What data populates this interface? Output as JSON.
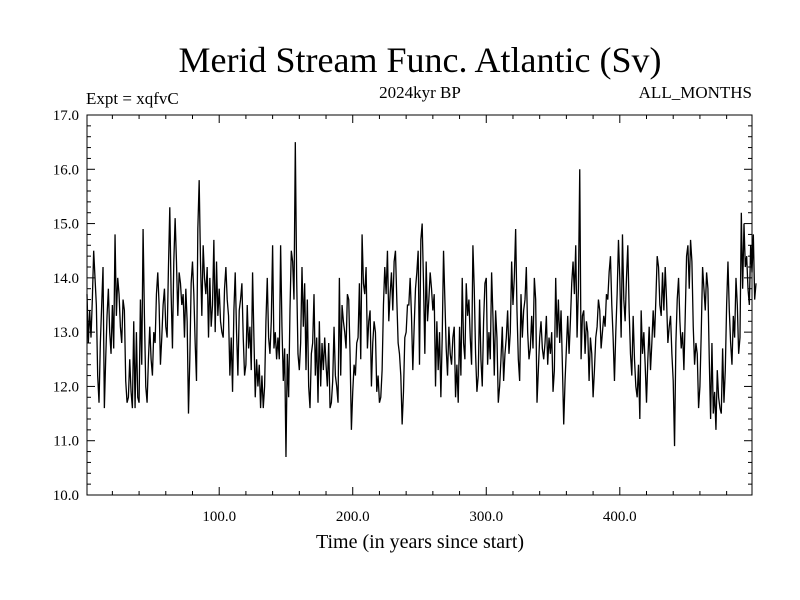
{
  "chart_data": {
    "type": "line",
    "title": "Merid Stream Func. Atlantic (Sv)",
    "subtitle": "2024kyr BP",
    "left_note": "Expt = xqfvC",
    "right_note": "ALL_MONTHS",
    "xlabel": "Time (in years since start)",
    "ylabel": "",
    "xlim": [
      1,
      499
    ],
    "ylim": [
      10.0,
      17.0
    ],
    "xticks": [
      100,
      200,
      300,
      400
    ],
    "xtick_labels": [
      "100.0",
      "200.0",
      "300.0",
      "400.0"
    ],
    "yticks": [
      10,
      11,
      12,
      13,
      14,
      15,
      16,
      17
    ],
    "ytick_labels": [
      "10.0",
      "11.0",
      "12.0",
      "13.0",
      "14.0",
      "15.0",
      "16.0",
      "17.0"
    ],
    "grid": false,
    "series": [
      {
        "name": "Merid Stream Func. Atlantic",
        "color": "#000000",
        "x_start": 1,
        "x_step": 1,
        "values": [
          13.7,
          12.8,
          13.4,
          12.9,
          13.6,
          14.5,
          14.0,
          13.5,
          12.2,
          11.7,
          12.8,
          13.5,
          14.2,
          11.6,
          12.5,
          13.3,
          13.8,
          13.0,
          12.6,
          13.5,
          12.7,
          14.8,
          13.3,
          14.0,
          13.7,
          13.1,
          12.8,
          13.6,
          13.4,
          12.1,
          11.7,
          11.8,
          12.5,
          11.9,
          11.6,
          13.2,
          11.6,
          13.0,
          11.8,
          11.7,
          13.6,
          12.4,
          14.9,
          13.3,
          12.0,
          11.7,
          12.5,
          13.1,
          12.5,
          12.2,
          13.0,
          12.8,
          13.7,
          14.1,
          13.5,
          12.4,
          12.9,
          13.5,
          13.8,
          13.1,
          12.9,
          14.2,
          15.3,
          13.7,
          12.7,
          14.3,
          15.1,
          14.3,
          13.3,
          14.1,
          13.9,
          13.5,
          13.7,
          12.9,
          13.8,
          13.2,
          11.5,
          12.5,
          13.9,
          14.3,
          13.7,
          12.8,
          12.1,
          14.9,
          15.8,
          14.3,
          13.3,
          14.6,
          14.0,
          13.7,
          14.2,
          12.9,
          14.0,
          13.1,
          13.5,
          14.7,
          13.0,
          14.3,
          13.3,
          13.8,
          13.2,
          13.0,
          12.9,
          13.8,
          14.2,
          13.6,
          13.3,
          12.2,
          12.9,
          11.9,
          13.4,
          14.1,
          13.0,
          12.2,
          13.4,
          13.6,
          13.9,
          12.9,
          12.2,
          12.4,
          13.5,
          12.7,
          13.1,
          12.3,
          14.1,
          12.9,
          11.8,
          12.5,
          12.0,
          12.4,
          11.6,
          12.2,
          11.6,
          12.0,
          13.2,
          14.0,
          12.9,
          12.6,
          13.2,
          14.6,
          12.7,
          13.0,
          12.5,
          12.9,
          12.5,
          14.6,
          13.1,
          12.1,
          12.7,
          10.7,
          12.6,
          11.8,
          13.4,
          14.5,
          14.3,
          13.6,
          16.5,
          14.0,
          12.6,
          12.3,
          12.8,
          14.2,
          13.1,
          13.9,
          12.3,
          13.6,
          12.0,
          11.6,
          12.6,
          12.8,
          13.7,
          12.2,
          12.9,
          11.7,
          13.2,
          12.0,
          12.8,
          12.3,
          12.9,
          12.4,
          12.0,
          12.8,
          11.6,
          11.7,
          12.1,
          13.1,
          12.2,
          12.0,
          11.7,
          14.0,
          12.2,
          13.5,
          13.2,
          13.0,
          12.7,
          13.7,
          13.6,
          12.6,
          11.2,
          11.9,
          12.4,
          12.2,
          12.8,
          12.9,
          13.9,
          12.5,
          14.8,
          13.9,
          13.7,
          14.2,
          12.7,
          13.2,
          13.4,
          12.0,
          12.8,
          13.2,
          13.0,
          11.9,
          12.2,
          11.7,
          11.8,
          12.3,
          13.5,
          14.2,
          13.7,
          14.5,
          13.2,
          13.7,
          14.1,
          13.4,
          14.3,
          14.5,
          13.6,
          12.8,
          12.6,
          12.2,
          11.3,
          11.9,
          12.9,
          13.0,
          13.5,
          13.5,
          14.0,
          13.3,
          12.3,
          13.1,
          13.8,
          14.1,
          14.5,
          12.4,
          14.7,
          15.0,
          13.9,
          12.6,
          14.3,
          13.2,
          13.6,
          14.1,
          13.8,
          13.4,
          13.7,
          12.0,
          13.2,
          12.3,
          13.0,
          11.8,
          12.9,
          14.5,
          13.6,
          12.7,
          12.2,
          13.1,
          12.6,
          12.4,
          12.9,
          13.1,
          11.8,
          12.4,
          11.7,
          13.1,
          12.2,
          14.0,
          12.8,
          12.5,
          13.9,
          13.3,
          13.6,
          12.9,
          12.4,
          14.6,
          13.8,
          12.6,
          11.9,
          12.2,
          13.6,
          12.5,
          12.0,
          13.2,
          13.9,
          14.0,
          12.4,
          13.0,
          12.5,
          14.1,
          13.3,
          12.2,
          13.4,
          12.9,
          11.7,
          12.0,
          12.5,
          13.1,
          12.1,
          12.6,
          12.9,
          13.4,
          12.6,
          13.0,
          14.3,
          13.5,
          14.0,
          14.9,
          13.4,
          12.5,
          12.1,
          13.7,
          12.9,
          13.4,
          13.6,
          14.2,
          13.0,
          12.5,
          12.7,
          13.3,
          12.7,
          14.0,
          13.6,
          11.7,
          12.3,
          12.9,
          13.2,
          12.7,
          12.5,
          12.8,
          13.3,
          12.4,
          12.9,
          12.6,
          13.0,
          11.9,
          12.3,
          14.0,
          12.9,
          13.6,
          12.8,
          13.4,
          12.4,
          11.3,
          12.1,
          12.7,
          13.3,
          12.6,
          13.2,
          13.9,
          14.3,
          13.7,
          14.6,
          12.9,
          13.8,
          16.0,
          12.5,
          13.3,
          13.4,
          12.6,
          13.2,
          13.0,
          12.1,
          12.9,
          12.6,
          11.8,
          12.3,
          12.9,
          13.1,
          13.6,
          13.4,
          12.7,
          13.0,
          13.3,
          13.1,
          13.7,
          13.6,
          14.1,
          14.4,
          13.5,
          12.9,
          12.1,
          13.0,
          13.7,
          14.7,
          14.0,
          12.9,
          14.8,
          13.6,
          13.2,
          14.0,
          14.6,
          13.4,
          12.6,
          12.2,
          13.3,
          12.5,
          12.0,
          11.8,
          12.4,
          11.4,
          13.4,
          12.6,
          13.0,
          12.4,
          11.7,
          12.5,
          13.1,
          12.3,
          12.8,
          13.4,
          12.9,
          13.6,
          14.4,
          14.2,
          13.5,
          13.3,
          14.1,
          13.4,
          14.2,
          13.6,
          12.8,
          13.1,
          13.3,
          12.6,
          12.1,
          10.9,
          12.8,
          13.6,
          14.0,
          13.2,
          12.7,
          13.0,
          12.3,
          13.3,
          14.4,
          14.6,
          13.8,
          14.7,
          14.3,
          13.1,
          12.4,
          12.8,
          12.6,
          11.6,
          12.0,
          13.0,
          14.2,
          13.8,
          13.4,
          14.1,
          13.8,
          12.5,
          11.4,
          12.8,
          11.5,
          11.9,
          11.2,
          12.3,
          11.8,
          11.6,
          11.5,
          12.7,
          11.7,
          12.3,
          13.5,
          14.3,
          13.4,
          12.8,
          12.4,
          13.3,
          12.9,
          14.0,
          13.5,
          12.6,
          12.9,
          15.2,
          13.8,
          15.0,
          14.2,
          14.4,
          13.8,
          13.5,
          14.6,
          14.1,
          14.8,
          13.6,
          13.9
        ]
      }
    ]
  }
}
